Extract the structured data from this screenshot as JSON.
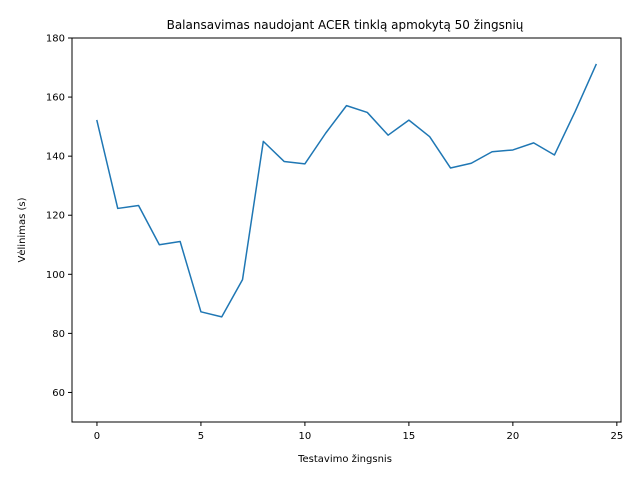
{
  "chart_data": {
    "type": "line",
    "title": "Balansavimas naudojant ACER tinklą apmokytą 50 žingsnių",
    "xlabel": "Testavimo žingsnis",
    "ylabel": "Vėlinimas (s)",
    "xlim": [
      -1.2,
      25.2
    ],
    "ylim": [
      50,
      180
    ],
    "xticks": [
      0,
      5,
      10,
      15,
      20,
      25
    ],
    "yticks": [
      60,
      80,
      100,
      120,
      140,
      160,
      180
    ],
    "grid": false,
    "series": [
      {
        "color": "#1f77b4",
        "x": [
          0,
          1,
          2,
          3,
          4,
          5,
          6,
          7,
          8,
          9,
          10,
          11,
          12,
          13,
          14,
          15,
          16,
          17,
          18,
          19,
          20,
          21,
          22,
          23,
          24
        ],
        "y": [
          152.0,
          122.3,
          123.3,
          110.0,
          111.1,
          87.3,
          85.6,
          98.2,
          145.0,
          138.2,
          137.4,
          147.8,
          157.1,
          154.8,
          147.1,
          152.2,
          146.6,
          136.0,
          137.6,
          141.5,
          142.1,
          144.5,
          140.4,
          155.2,
          171.0
        ]
      }
    ]
  }
}
